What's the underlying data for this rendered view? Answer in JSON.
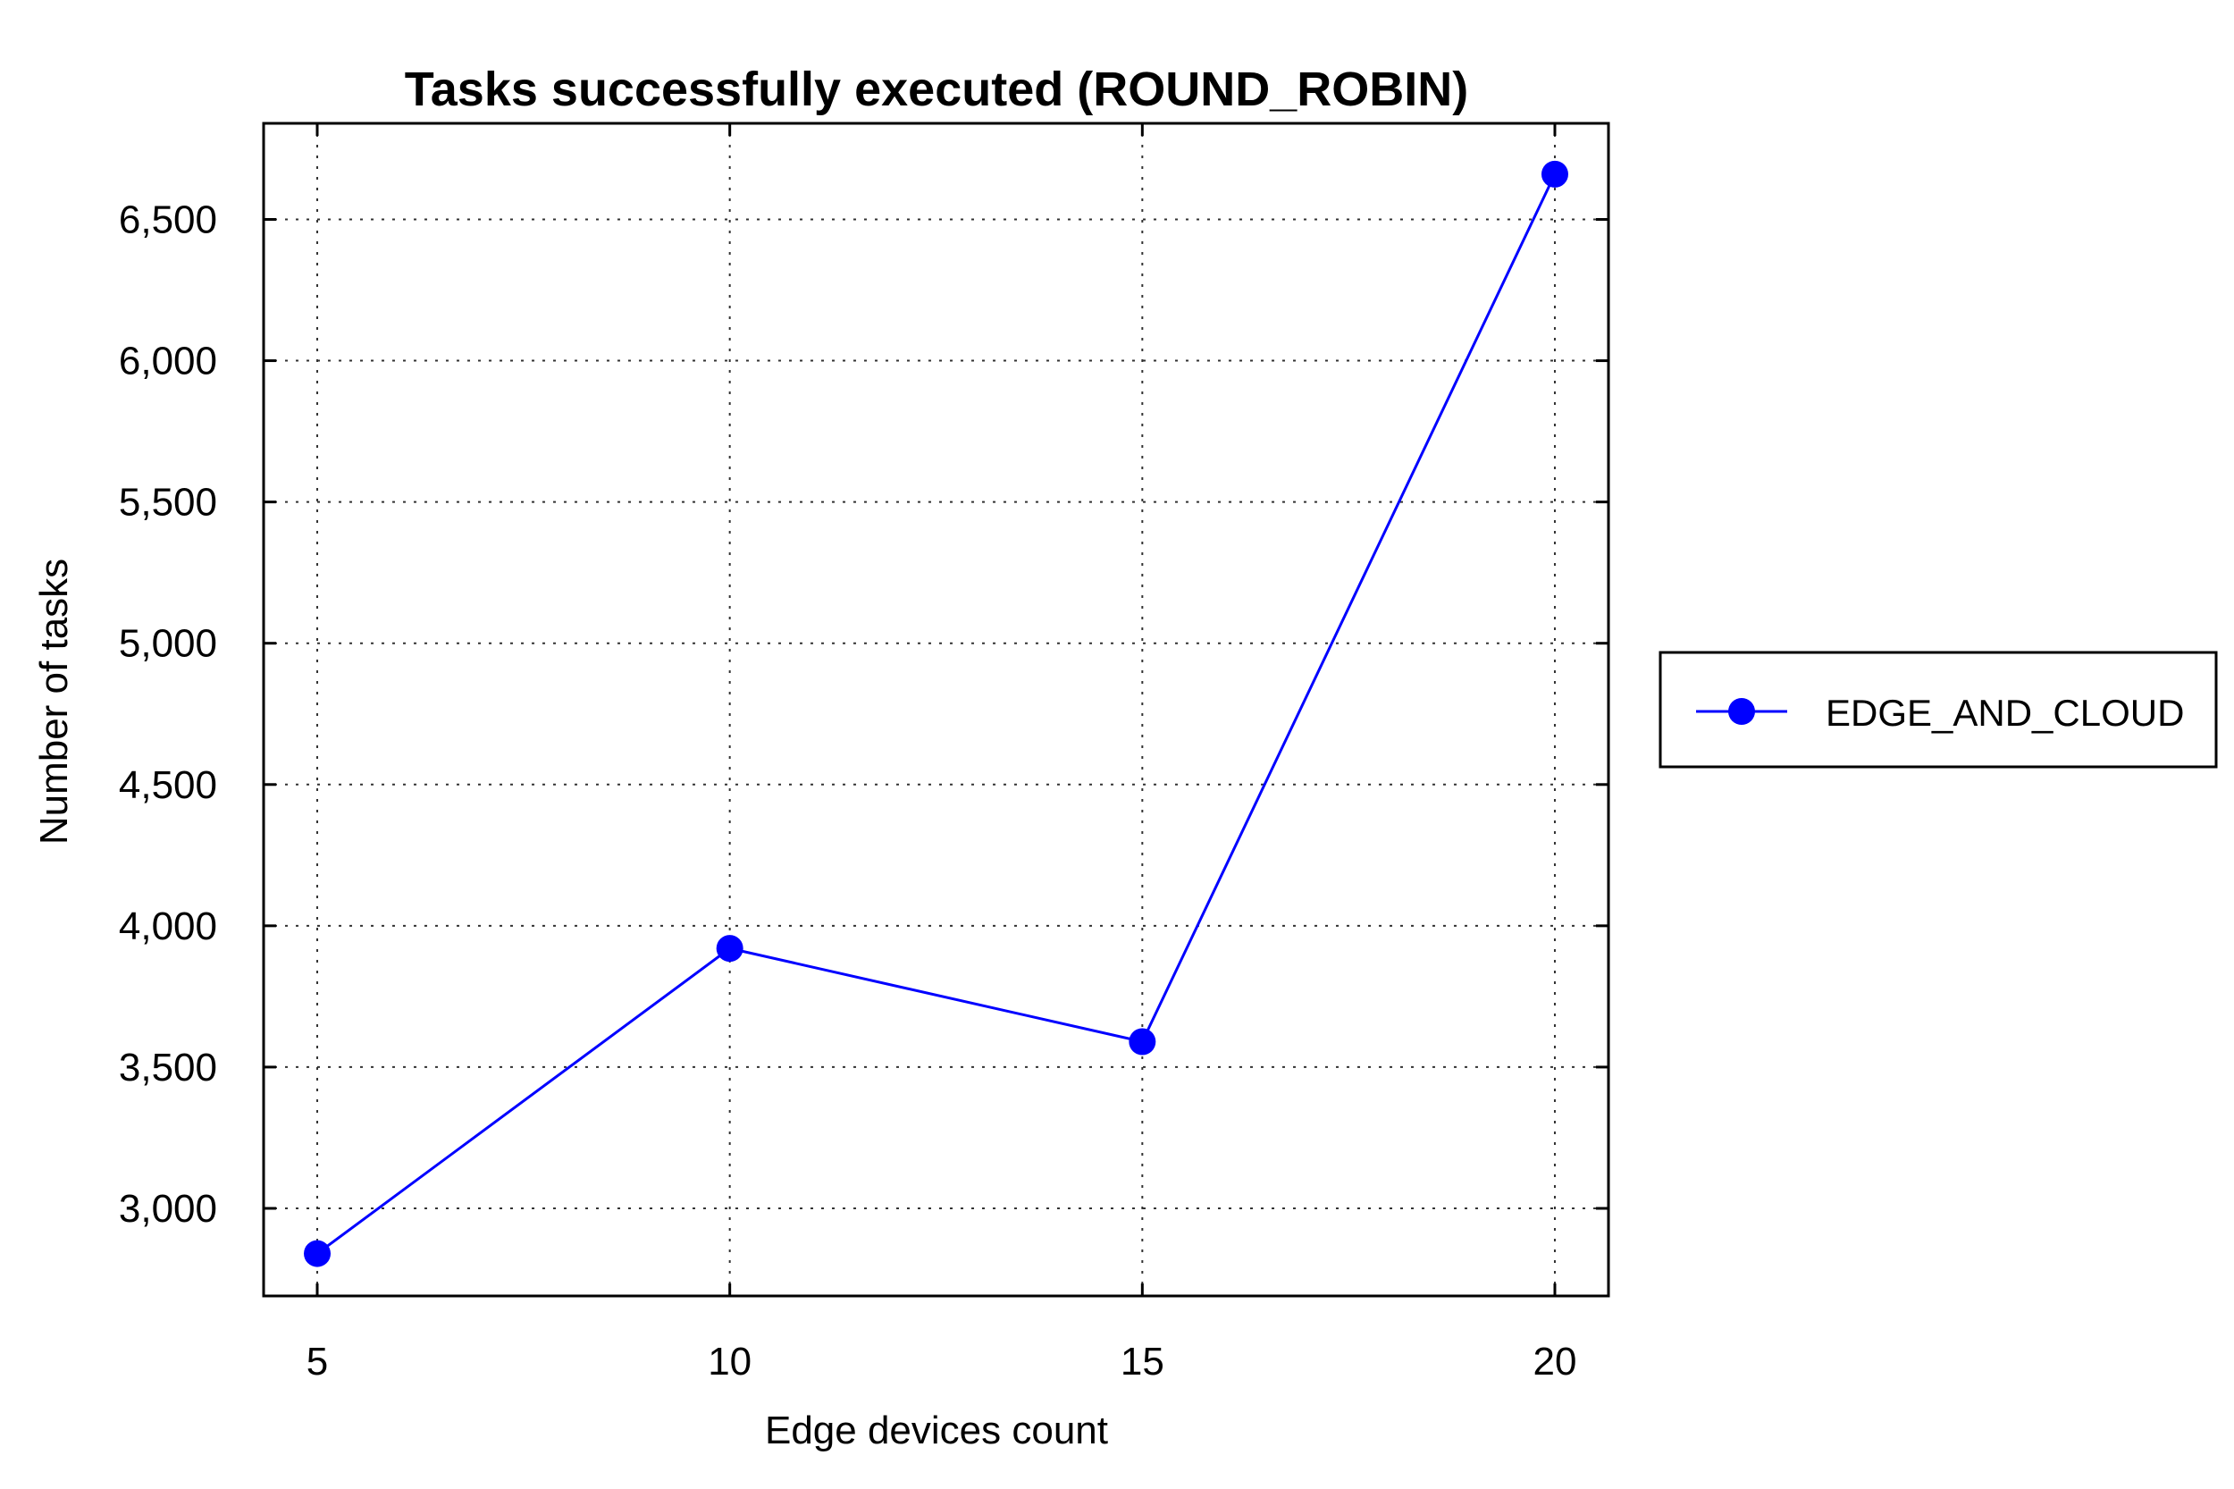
{
  "chart_data": {
    "type": "line",
    "title": "Tasks successfully executed (ROUND_ROBIN)",
    "xlabel": "Edge devices count",
    "ylabel": "Number of tasks",
    "x": [
      5,
      10,
      15,
      20
    ],
    "x_tick_labels": [
      "5",
      "10",
      "15",
      "20"
    ],
    "xlim": [
      4.35,
      20.65
    ],
    "ylim": [
      2690,
      6840
    ],
    "y_ticks": [
      3000,
      3500,
      4000,
      4500,
      5000,
      5500,
      6000,
      6500
    ],
    "y_tick_labels": [
      "3,000",
      "3,500",
      "4,000",
      "4,500",
      "5,000",
      "5,500",
      "6,000",
      "6,500"
    ],
    "grid": true,
    "legend_position": "right",
    "series": [
      {
        "name": "EDGE_AND_CLOUD",
        "color": "#0000ff",
        "marker": "circle",
        "values": [
          2840,
          3920,
          3590,
          6660
        ]
      }
    ]
  }
}
